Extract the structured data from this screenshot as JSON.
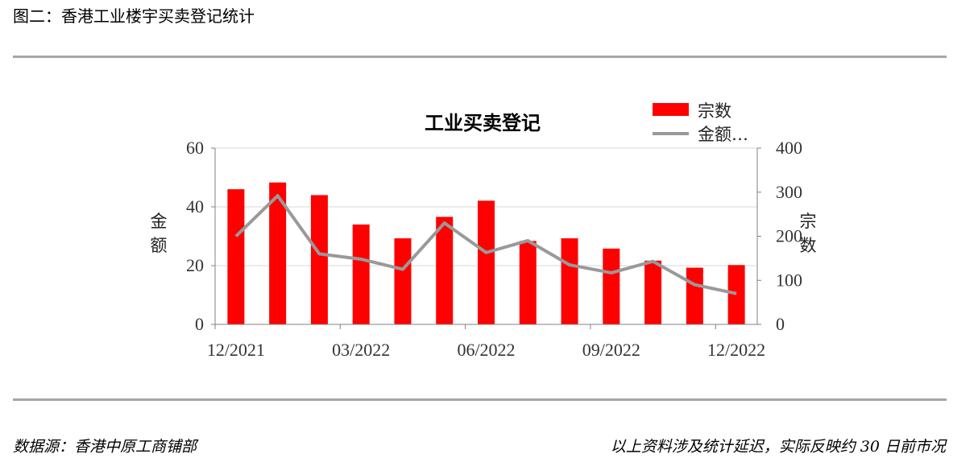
{
  "page": {
    "figure_title": "图二：香港工业楼宇买卖登记统计",
    "source_note": "数据源：香港中原工商铺部",
    "disclaimer": "以上资料涉及统计延迟，实际反映约 30 日前市况"
  },
  "colors": {
    "bar": "#ff0000",
    "line": "#999999",
    "rule": "#a6a6a6",
    "gridline": "#d9d9d9"
  },
  "chart_data": {
    "type": "bar",
    "title": "工业买卖登记",
    "categories": [
      "12/2021",
      "01/2022",
      "02/2022",
      "03/2022",
      "04/2022",
      "05/2022",
      "06/2022",
      "07/2022",
      "08/2022",
      "09/2022",
      "10/2022",
      "11/2022",
      "12/2022"
    ],
    "x_tick_labels": [
      "12/2021",
      "03/2022",
      "06/2022",
      "09/2022",
      "12/2022"
    ],
    "series": [
      {
        "name": "宗数",
        "type": "bar",
        "axis": "left",
        "values": [
          46,
          48.3,
          44,
          34,
          29.3,
          36.6,
          42.1,
          28.4,
          29.3,
          25.8,
          21.7,
          19.3,
          20.2
        ]
      },
      {
        "name": "金额…",
        "type": "line",
        "axis": "right",
        "values": [
          200,
          292,
          160,
          148,
          125,
          230,
          163,
          190,
          135,
          117,
          143,
          90,
          70
        ]
      }
    ],
    "y_left": {
      "label": "金额",
      "ylim": [
        0,
        60
      ],
      "ticks": [
        0,
        20,
        40,
        60
      ]
    },
    "y_right": {
      "label": "宗数",
      "ylim": [
        0,
        400
      ],
      "ticks": [
        0,
        100,
        200,
        300,
        400
      ]
    },
    "grid": true,
    "legend_position": "top-right"
  }
}
